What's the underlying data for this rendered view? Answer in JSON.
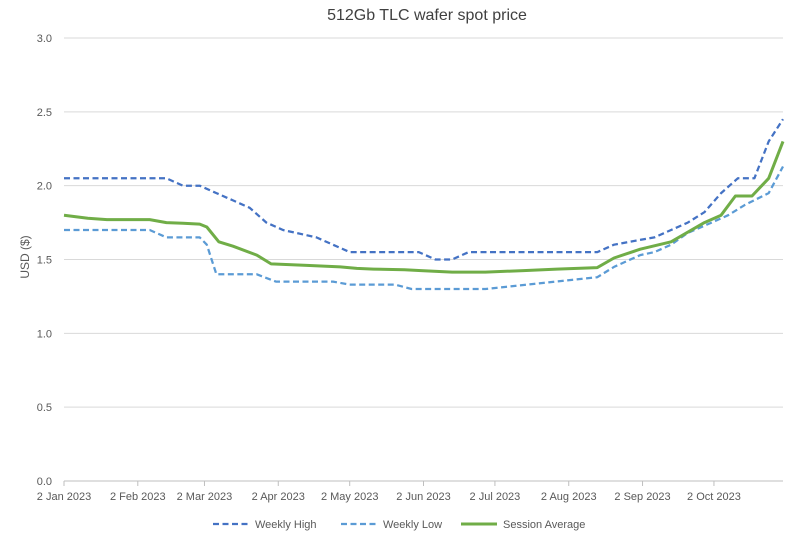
{
  "chart_data": {
    "type": "line",
    "title": "512Gb TLC wafer spot price",
    "xlabel": "",
    "ylabel": "USD ($)",
    "ylim": [
      0,
      3.0
    ],
    "y_ticks": [
      "0.0",
      "0.5",
      "1.0",
      "1.5",
      "2.0",
      "2.5",
      "3.0"
    ],
    "x_ticks": [
      "2 Jan 2023",
      "2 Feb 2023",
      "2 Mar 2023",
      "2 Apr 2023",
      "2 May 2023",
      "2 Jun 2023",
      "2 Jul 2023",
      "2 Aug 2023",
      "2 Sep 2023",
      "2 Oct 2023"
    ],
    "xlim": [
      "2023-01-02",
      "2023-10-31"
    ],
    "grid": "horizontal",
    "legend_position": "bottom",
    "series": [
      {
        "name": "Weekly High",
        "color": "#4472C4",
        "style": "dashed",
        "points": [
          [
            "2023-01-02",
            2.05
          ],
          [
            "2023-02-14",
            2.05
          ],
          [
            "2023-02-21",
            2.0
          ],
          [
            "2023-02-28",
            2.0
          ],
          [
            "2023-03-07",
            1.95
          ],
          [
            "2023-03-14",
            1.9
          ],
          [
            "2023-03-21",
            1.85
          ],
          [
            "2023-03-28",
            1.75
          ],
          [
            "2023-04-04",
            1.7
          ],
          [
            "2023-04-18",
            1.65
          ],
          [
            "2023-05-02",
            1.55
          ],
          [
            "2023-05-31",
            1.55
          ],
          [
            "2023-06-07",
            1.5
          ],
          [
            "2023-06-14",
            1.5
          ],
          [
            "2023-06-21",
            1.55
          ],
          [
            "2023-08-14",
            1.55
          ],
          [
            "2023-08-21",
            1.6
          ],
          [
            "2023-08-31",
            1.63
          ],
          [
            "2023-09-07",
            1.65
          ],
          [
            "2023-09-14",
            1.7
          ],
          [
            "2023-09-21",
            1.75
          ],
          [
            "2023-09-28",
            1.82
          ],
          [
            "2023-10-05",
            1.95
          ],
          [
            "2023-10-12",
            2.05
          ],
          [
            "2023-10-19",
            2.05
          ],
          [
            "2023-10-25",
            2.3
          ],
          [
            "2023-10-31",
            2.45
          ]
        ]
      },
      {
        "name": "Weekly Low",
        "color": "#5B9BD5",
        "style": "dashed",
        "points": [
          [
            "2023-01-02",
            1.7
          ],
          [
            "2023-02-07",
            1.7
          ],
          [
            "2023-02-14",
            1.65
          ],
          [
            "2023-02-28",
            1.65
          ],
          [
            "2023-03-03",
            1.6
          ],
          [
            "2023-03-07",
            1.4
          ],
          [
            "2023-03-24",
            1.4
          ],
          [
            "2023-04-01",
            1.35
          ],
          [
            "2023-04-25",
            1.35
          ],
          [
            "2023-05-02",
            1.33
          ],
          [
            "2023-05-21",
            1.33
          ],
          [
            "2023-05-28",
            1.3
          ],
          [
            "2023-06-28",
            1.3
          ],
          [
            "2023-08-14",
            1.38
          ],
          [
            "2023-08-21",
            1.45
          ],
          [
            "2023-09-01",
            1.53
          ],
          [
            "2023-09-07",
            1.55
          ],
          [
            "2023-09-14",
            1.6
          ],
          [
            "2023-09-21",
            1.68
          ],
          [
            "2023-10-01",
            1.75
          ],
          [
            "2023-10-08",
            1.8
          ],
          [
            "2023-10-15",
            1.87
          ],
          [
            "2023-10-25",
            1.95
          ],
          [
            "2023-10-31",
            2.13
          ]
        ]
      },
      {
        "name": "Session Average",
        "color": "#70AD47",
        "style": "solid",
        "points": [
          [
            "2023-01-02",
            1.8
          ],
          [
            "2023-01-12",
            1.78
          ],
          [
            "2023-01-20",
            1.77
          ],
          [
            "2023-02-07",
            1.77
          ],
          [
            "2023-02-14",
            1.75
          ],
          [
            "2023-02-21",
            1.745
          ],
          [
            "2023-02-28",
            1.74
          ],
          [
            "2023-03-03",
            1.72
          ],
          [
            "2023-03-08",
            1.62
          ],
          [
            "2023-03-14",
            1.59
          ],
          [
            "2023-03-24",
            1.53
          ],
          [
            "2023-03-30",
            1.47
          ],
          [
            "2023-04-14",
            1.46
          ],
          [
            "2023-04-28",
            1.45
          ],
          [
            "2023-05-05",
            1.44
          ],
          [
            "2023-05-12",
            1.435
          ],
          [
            "2023-05-25",
            1.43
          ],
          [
            "2023-06-01",
            1.425
          ],
          [
            "2023-06-14",
            1.415
          ],
          [
            "2023-06-28",
            1.415
          ],
          [
            "2023-07-14",
            1.425
          ],
          [
            "2023-07-28",
            1.435
          ],
          [
            "2023-08-14",
            1.445
          ],
          [
            "2023-08-21",
            1.51
          ],
          [
            "2023-09-01",
            1.57
          ],
          [
            "2023-09-14",
            1.62
          ],
          [
            "2023-09-28",
            1.75
          ],
          [
            "2023-10-05",
            1.8
          ],
          [
            "2023-10-11",
            1.93
          ],
          [
            "2023-10-18",
            1.93
          ],
          [
            "2023-10-25",
            2.05
          ],
          [
            "2023-10-31",
            2.3
          ]
        ]
      }
    ]
  }
}
